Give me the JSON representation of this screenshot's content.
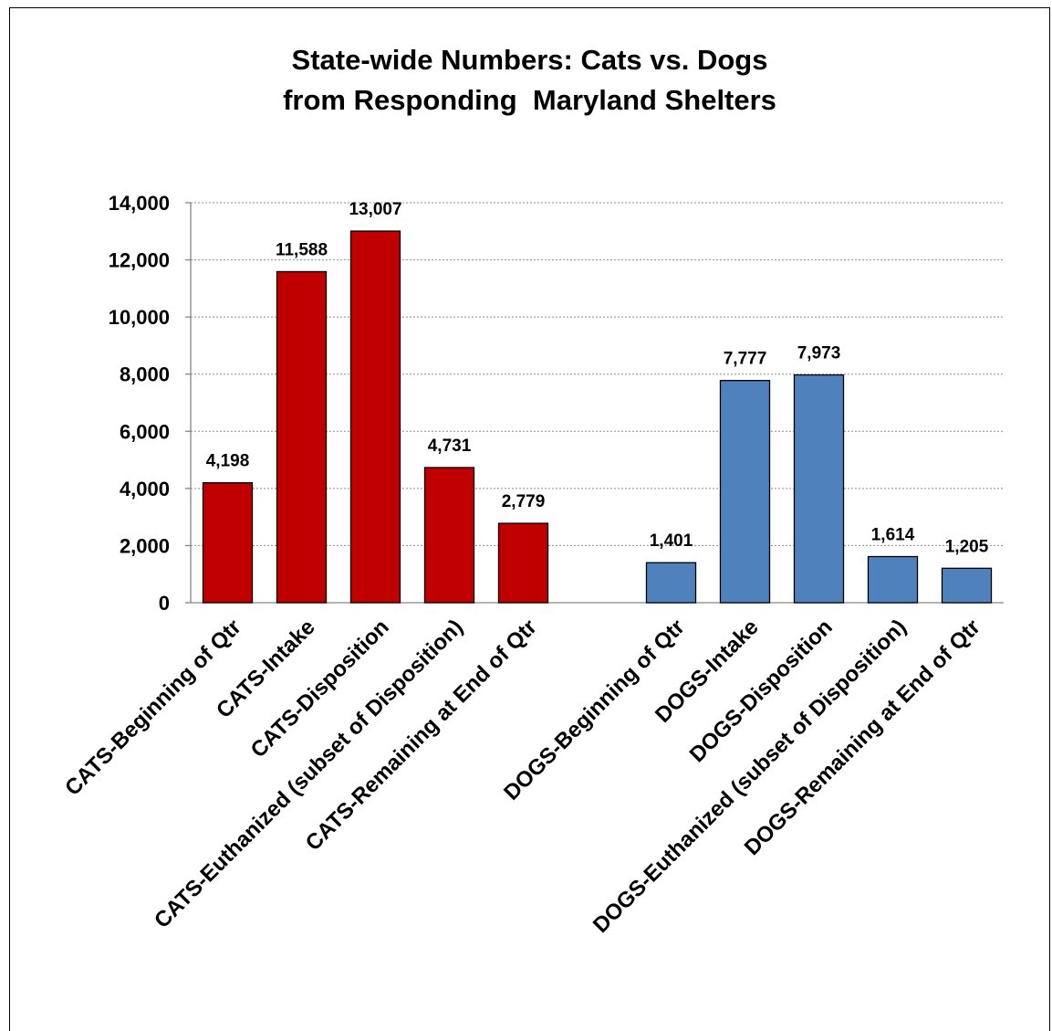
{
  "chart_data": {
    "type": "bar",
    "title": [
      "State-wide Numbers: Cats vs. Dogs",
      "from Responding  Maryland Shelters"
    ],
    "xlabel": "",
    "ylabel": "",
    "categories": [
      "CATS-Beginning of Qtr",
      "CATS-Intake",
      "CATS-Disposition",
      "CATS-Euthanized (subset of Disposition)",
      "CATS-Remaining at End of Qtr",
      "",
      "DOGS-Beginning of Qtr",
      "DOGS-Intake",
      "DOGS-Disposition",
      "DOGS-Euthanized (subset of Disposition)",
      "DOGS-Remaining at End of Qtr"
    ],
    "values": [
      4198,
      11588,
      13007,
      4731,
      2779,
      null,
      1401,
      7777,
      7973,
      1614,
      1205
    ],
    "bar_colors": [
      "#C00000",
      "#C00000",
      "#C00000",
      "#C00000",
      "#C00000",
      null,
      "#4F81BD",
      "#4F81BD",
      "#4F81BD",
      "#4F81BD",
      "#4F81BD"
    ],
    "bar_outline": "#000000",
    "ylim": [
      0,
      14000
    ],
    "yticks": [
      0,
      2000,
      4000,
      6000,
      8000,
      10000,
      12000,
      14000
    ],
    "grid": true,
    "data_labels": true,
    "show_legend": false
  }
}
